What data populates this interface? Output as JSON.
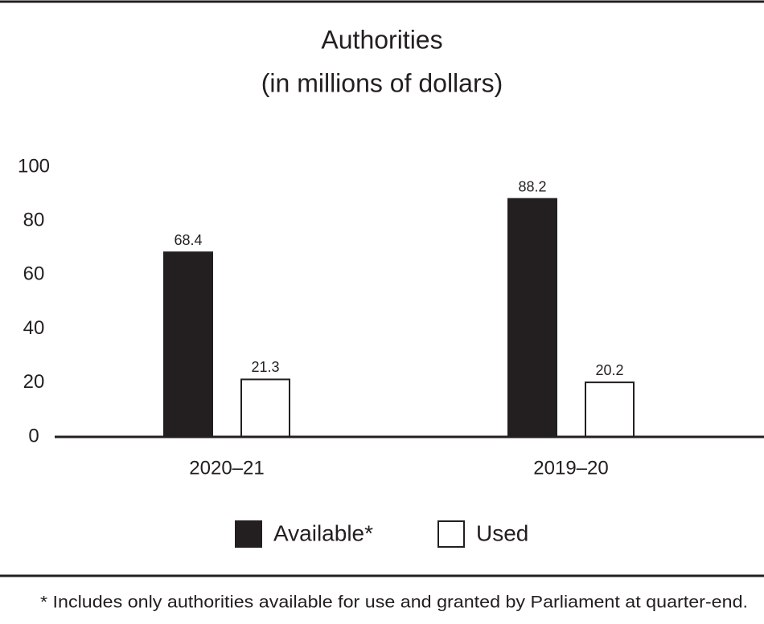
{
  "chart_data": {
    "type": "bar",
    "title": "Authorities",
    "subtitle": "(in millions of dollars)",
    "categories": [
      "2020–21",
      "2019–20"
    ],
    "series": [
      {
        "name": "Available*",
        "color": "#231f20",
        "values": [
          68.4,
          88.2
        ]
      },
      {
        "name": "Used",
        "color": "#ffffff",
        "values": [
          21.3,
          20.2
        ]
      }
    ],
    "ylim": [
      0,
      100
    ],
    "yticks": [
      0,
      20,
      40,
      60,
      80,
      100
    ],
    "grid": false,
    "legend": "bottom",
    "footnote": "* Includes only authorities available for use and granted by Parliament at quarter-end."
  }
}
